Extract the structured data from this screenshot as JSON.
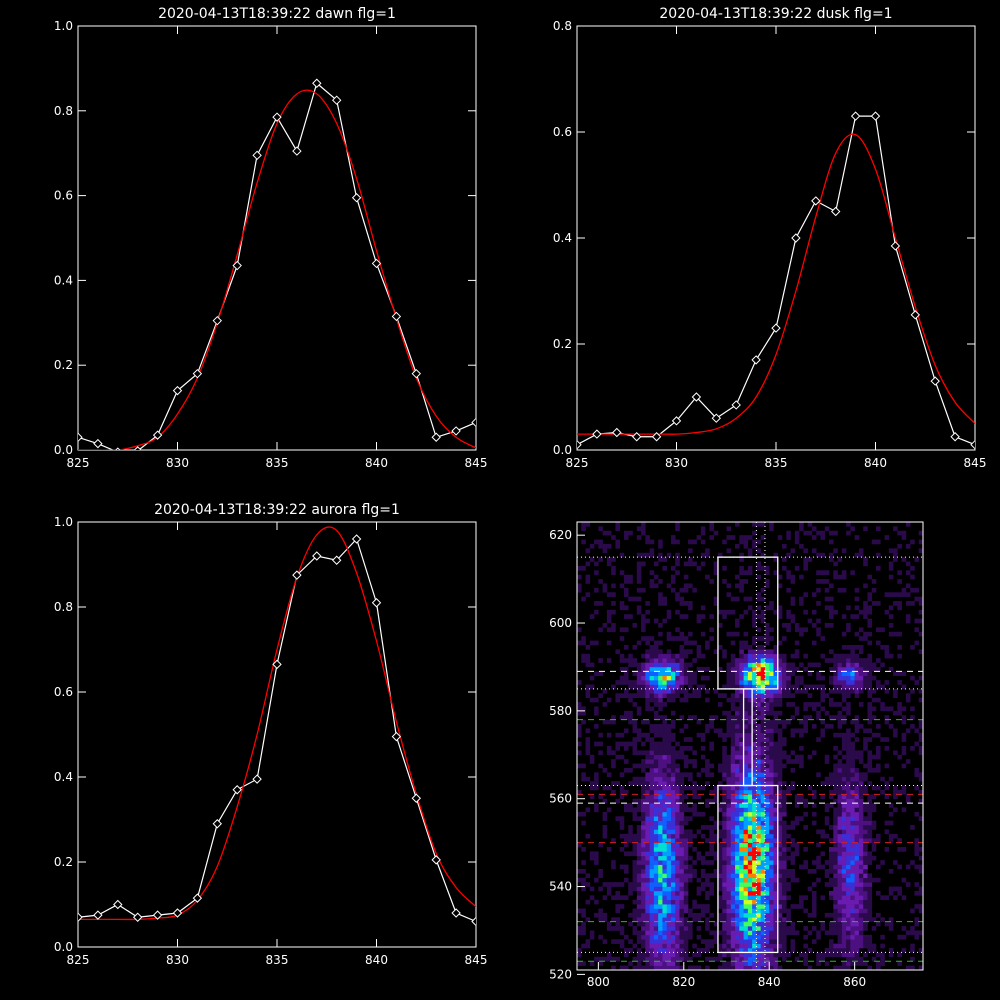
{
  "chart_data": [
    {
      "type": "line",
      "title": "2020-04-13T18:39:22 dawn flg=1",
      "xlim": [
        825,
        845
      ],
      "ylim": [
        0,
        1.0
      ],
      "xticks": [
        "825",
        "830",
        "835",
        "840",
        "845"
      ],
      "yticks": [
        "0.0",
        "0.2",
        "0.4",
        "0.6",
        "0.8",
        "1.0"
      ],
      "series": [
        {
          "color": "#ffffff",
          "marker": "diamond",
          "x": [
            825,
            826,
            827,
            828,
            829,
            830,
            831,
            832,
            833,
            834,
            835,
            836,
            837,
            838,
            839,
            840,
            841,
            842,
            843,
            844,
            845
          ],
          "y": [
            0.03,
            0.015,
            -0.005,
            -0.002,
            0.035,
            0.14,
            0.18,
            0.305,
            0.435,
            0.695,
            0.785,
            0.705,
            0.865,
            0.825,
            0.595,
            0.44,
            0.315,
            0.18,
            0.03,
            0.045,
            0.065
          ]
        },
        {
          "color": "#ff0000",
          "x": [
            825,
            826,
            827,
            828,
            829,
            830,
            831,
            832,
            833,
            834,
            835,
            836,
            837,
            838,
            839,
            840,
            841,
            842,
            843,
            844,
            845
          ],
          "y": [
            0.0,
            0.0,
            0.0,
            0.01,
            0.03,
            0.085,
            0.17,
            0.3,
            0.46,
            0.63,
            0.77,
            0.84,
            0.84,
            0.77,
            0.64,
            0.47,
            0.31,
            0.17,
            0.08,
            0.03,
            0.005
          ]
        }
      ]
    },
    {
      "type": "line",
      "title": "2020-04-13T18:39:22 dusk flg=1",
      "xlim": [
        825,
        845
      ],
      "ylim": [
        0,
        0.8
      ],
      "xticks": [
        "825",
        "830",
        "835",
        "840",
        "845"
      ],
      "yticks": [
        "0.0",
        "0.2",
        "0.4",
        "0.6",
        "0.8"
      ],
      "series": [
        {
          "color": "#ffffff",
          "marker": "diamond",
          "x": [
            825,
            826,
            827,
            828,
            829,
            830,
            831,
            832,
            833,
            834,
            835,
            836,
            837,
            838,
            839,
            840,
            841,
            842,
            843,
            844,
            845
          ],
          "y": [
            0.01,
            0.03,
            0.033,
            0.025,
            0.025,
            0.055,
            0.1,
            0.06,
            0.085,
            0.17,
            0.23,
            0.4,
            0.47,
            0.45,
            0.63,
            0.63,
            0.385,
            0.255,
            0.13,
            0.025,
            0.01
          ]
        },
        {
          "color": "#ff0000",
          "x": [
            825,
            826,
            827,
            828,
            829,
            830,
            831,
            832,
            833,
            834,
            835,
            836,
            837,
            838,
            839,
            840,
            841,
            842,
            843,
            844,
            845
          ],
          "y": [
            0.03,
            0.03,
            0.03,
            0.03,
            0.03,
            0.03,
            0.033,
            0.04,
            0.06,
            0.1,
            0.18,
            0.3,
            0.44,
            0.56,
            0.595,
            0.53,
            0.4,
            0.27,
            0.16,
            0.09,
            0.05
          ]
        }
      ]
    },
    {
      "type": "line",
      "title": "2020-04-13T18:39:22 aurora flg=1",
      "xlim": [
        825,
        845
      ],
      "ylim": [
        0,
        1.0
      ],
      "xticks": [
        "825",
        "830",
        "835",
        "840",
        "845"
      ],
      "yticks": [
        "0.0",
        "0.2",
        "0.4",
        "0.6",
        "0.8",
        "1.0"
      ],
      "series": [
        {
          "color": "#ffffff",
          "marker": "diamond",
          "x": [
            825,
            826,
            827,
            828,
            829,
            830,
            831,
            832,
            833,
            834,
            835,
            836,
            837,
            838,
            839,
            840,
            841,
            842,
            843,
            844,
            845
          ],
          "y": [
            0.07,
            0.075,
            0.1,
            0.07,
            0.075,
            0.08,
            0.115,
            0.29,
            0.37,
            0.395,
            0.665,
            0.875,
            0.92,
            0.91,
            0.96,
            0.81,
            0.495,
            0.35,
            0.205,
            0.08,
            0.06
          ]
        },
        {
          "color": "#ff0000",
          "x": [
            825,
            826,
            827,
            828,
            829,
            830,
            831,
            832,
            833,
            834,
            835,
            836,
            837,
            838,
            839,
            840,
            841,
            842,
            843,
            844,
            845
          ],
          "y": [
            0.065,
            0.065,
            0.065,
            0.065,
            0.068,
            0.075,
            0.11,
            0.19,
            0.33,
            0.5,
            0.7,
            0.87,
            0.97,
            0.98,
            0.88,
            0.72,
            0.53,
            0.36,
            0.22,
            0.14,
            0.095
          ]
        }
      ]
    },
    {
      "type": "heatmap",
      "xlim": [
        795,
        876
      ],
      "ylim": [
        521,
        623
      ],
      "xticks": [
        "800",
        "820",
        "840",
        "860"
      ],
      "yticks": [
        "520",
        "540",
        "560",
        "580",
        "600",
        "620"
      ],
      "colorscale": [
        "#000000",
        "#2a0a4a",
        "#4d1080",
        "#6a1bb0",
        "#3a30d8",
        "#1060ff",
        "#00a0ff",
        "#00e0d0",
        "#40ff60",
        "#d0ff20",
        "#ff8000",
        "#ff0000"
      ],
      "blobs": [
        {
          "cx": 815,
          "cy": 588,
          "sx": 3,
          "sy": 2.5,
          "amp": 0.75
        },
        {
          "cx": 838,
          "cy": 588,
          "sx": 3,
          "sy": 3,
          "amp": 1.0
        },
        {
          "cx": 859,
          "cy": 588,
          "sx": 2.5,
          "sy": 2,
          "amp": 0.45
        },
        {
          "cx": 815,
          "cy": 543,
          "sx": 3,
          "sy": 15,
          "amp": 0.6
        },
        {
          "cx": 836,
          "cy": 545,
          "sx": 3.5,
          "sy": 16,
          "amp": 0.9
        },
        {
          "cx": 859,
          "cy": 545,
          "sx": 2.5,
          "sy": 14,
          "amp": 0.35
        }
      ],
      "boxes": [
        {
          "x": [
            828,
            842
          ],
          "y": [
            585,
            615
          ]
        },
        {
          "x": [
            834,
            836
          ],
          "y": [
            563,
            585
          ]
        },
        {
          "x": [
            828,
            842
          ],
          "y": [
            525,
            563
          ]
        }
      ],
      "dotted_h": [
        615,
        585,
        563,
        525
      ],
      "dotted_v": [
        837,
        839
      ],
      "dashed_white_h": [
        589,
        559
      ],
      "dashed_green_h": [
        578,
        532,
        523
      ],
      "dashed_red_h": [
        561,
        550
      ]
    }
  ]
}
